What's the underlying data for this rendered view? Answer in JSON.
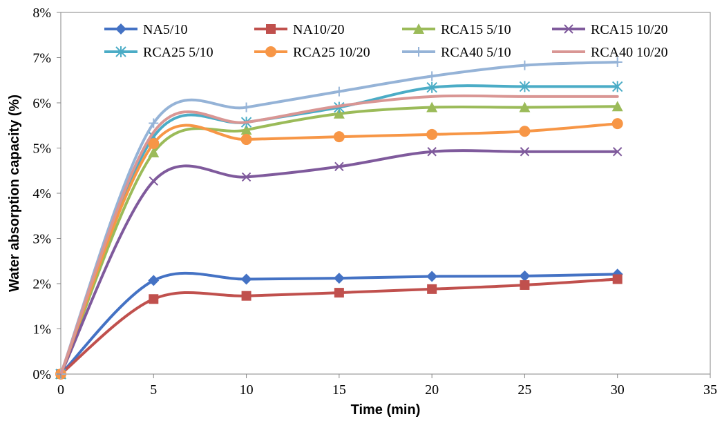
{
  "chart_data": {
    "type": "line",
    "title": "",
    "xlabel": "Time (min)",
    "ylabel": "Water absorption capacity (%)",
    "xlim": [
      0,
      35
    ],
    "ylim": [
      0,
      8
    ],
    "x_ticks": [
      "0",
      "5",
      "10",
      "15",
      "20",
      "25",
      "30",
      "35"
    ],
    "y_ticks": [
      "0%",
      "1%",
      "2%",
      "3%",
      "4%",
      "5%",
      "6%",
      "7%",
      "8%"
    ],
    "grid": false,
    "legend_position": "top",
    "x": [
      0,
      5,
      10,
      15,
      20,
      25,
      30
    ],
    "series": [
      {
        "name": "NA5/10",
        "color": "#4472C4",
        "marker": "diamond",
        "values": [
          0,
          2.07,
          2.1,
          2.12,
          2.16,
          2.17,
          2.21
        ]
      },
      {
        "name": "NA10/20",
        "color": "#C0504D",
        "marker": "square",
        "values": [
          0,
          1.66,
          1.73,
          1.8,
          1.88,
          1.97,
          2.1
        ]
      },
      {
        "name": "RCA15 5/10",
        "color": "#9BBB59",
        "marker": "triangle",
        "values": [
          0,
          4.9,
          5.4,
          5.76,
          5.9,
          5.9,
          5.92
        ]
      },
      {
        "name": "RCA15 10/20",
        "color": "#7F5A9C",
        "marker": "x",
        "values": [
          0,
          4.27,
          4.36,
          4.59,
          4.92,
          4.92,
          4.92
        ]
      },
      {
        "name": "RCA25 5/10",
        "color": "#4BACC6",
        "marker": "star",
        "values": [
          0,
          5.25,
          5.57,
          5.9,
          6.34,
          6.36,
          6.36
        ]
      },
      {
        "name": "RCA25 10/20",
        "color": "#F79646",
        "marker": "circle",
        "values": [
          0,
          5.1,
          5.19,
          5.25,
          5.3,
          5.37,
          5.54
        ]
      },
      {
        "name": "RCA40 5/10",
        "color": "#95B3D7",
        "marker": "plus",
        "values": [
          0,
          5.55,
          5.9,
          6.25,
          6.59,
          6.83,
          6.9
        ]
      },
      {
        "name": "RCA40 10/20",
        "color": "#D99694",
        "marker": "none",
        "values": [
          0,
          5.35,
          5.57,
          5.93,
          6.14,
          6.14,
          6.14
        ]
      }
    ]
  }
}
